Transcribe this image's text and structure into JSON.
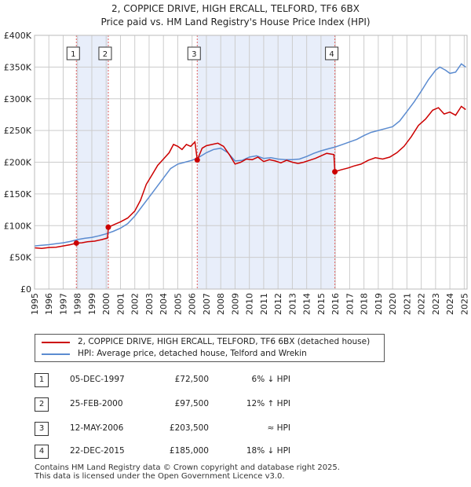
{
  "title_line1": "2, COPPICE DRIVE, HIGH ERCALL, TELFORD, TF6 6BX",
  "title_line2": "Price paid vs. HM Land Registry's House Price Index (HPI)",
  "colors": {
    "price": "#cc0000",
    "hpi": "#5b8bd0",
    "shade": "#e8eefa",
    "grid": "#cccccc",
    "vline": "#e06060"
  },
  "chart_data": {
    "type": "line",
    "xlabel": "",
    "ylabel": "",
    "xlim": [
      1995.0,
      2025.2
    ],
    "ylim": [
      0,
      400000
    ],
    "y_ticks": [
      {
        "value": 0,
        "label": "£0"
      },
      {
        "value": 50000,
        "label": "£50K"
      },
      {
        "value": 100000,
        "label": "£100K"
      },
      {
        "value": 150000,
        "label": "£150K"
      },
      {
        "value": 200000,
        "label": "£200K"
      },
      {
        "value": 250000,
        "label": "£250K"
      },
      {
        "value": 300000,
        "label": "£300K"
      },
      {
        "value": 350000,
        "label": "£350K"
      },
      {
        "value": 400000,
        "label": "£400K"
      }
    ],
    "x_ticks": [
      "1995",
      "1996",
      "1997",
      "1998",
      "1999",
      "2000",
      "2001",
      "2002",
      "2003",
      "2004",
      "2005",
      "2006",
      "2007",
      "2008",
      "2009",
      "2010",
      "2011",
      "2012",
      "2013",
      "2014",
      "2015",
      "2016",
      "2017",
      "2018",
      "2019",
      "2020",
      "2021",
      "2022",
      "2023",
      "2024",
      "2025"
    ],
    "grid": true,
    "shaded_ranges": [
      [
        1997.92,
        2000.15
      ],
      [
        2006.36,
        2015.97
      ]
    ],
    "sales": [
      {
        "label": "1",
        "x": 1997.92,
        "y": 72500
      },
      {
        "label": "2",
        "x": 2000.15,
        "y": 97500
      },
      {
        "label": "3",
        "x": 2006.36,
        "y": 203500
      },
      {
        "label": "4",
        "x": 2015.97,
        "y": 185000
      }
    ],
    "series": [
      {
        "name": "2, COPPICE DRIVE, HIGH ERCALL, TELFORD, TF6 6BX (detached house)",
        "color": "#cc0000",
        "points": [
          [
            1995.0,
            65000
          ],
          [
            1995.5,
            64000
          ],
          [
            1996.0,
            65500
          ],
          [
            1996.5,
            66000
          ],
          [
            1997.0,
            68000
          ],
          [
            1997.5,
            70000
          ],
          [
            1997.92,
            72500
          ],
          [
            1998.3,
            73000
          ],
          [
            1998.7,
            74500
          ],
          [
            1999.2,
            75500
          ],
          [
            1999.7,
            78000
          ],
          [
            2000.1,
            80500
          ],
          [
            2000.15,
            97500
          ],
          [
            2000.6,
            102000
          ],
          [
            2001.0,
            106000
          ],
          [
            2001.5,
            112000
          ],
          [
            2002.0,
            123000
          ],
          [
            2002.4,
            140000
          ],
          [
            2002.8,
            165000
          ],
          [
            2003.2,
            180000
          ],
          [
            2003.6,
            195000
          ],
          [
            2004.0,
            205000
          ],
          [
            2004.4,
            215000
          ],
          [
            2004.7,
            228000
          ],
          [
            2005.0,
            225000
          ],
          [
            2005.3,
            220000
          ],
          [
            2005.6,
            228000
          ],
          [
            2005.9,
            225000
          ],
          [
            2006.2,
            232000
          ],
          [
            2006.36,
            203500
          ],
          [
            2006.7,
            222000
          ],
          [
            2007.0,
            226000
          ],
          [
            2007.4,
            228000
          ],
          [
            2007.8,
            230000
          ],
          [
            2008.2,
            225000
          ],
          [
            2008.6,
            212000
          ],
          [
            2009.0,
            197000
          ],
          [
            2009.4,
            200000
          ],
          [
            2009.8,
            205000
          ],
          [
            2010.2,
            204000
          ],
          [
            2010.6,
            208000
          ],
          [
            2011.0,
            201000
          ],
          [
            2011.4,
            204000
          ],
          [
            2011.8,
            202000
          ],
          [
            2012.2,
            199000
          ],
          [
            2012.6,
            203000
          ],
          [
            2013.0,
            200000
          ],
          [
            2013.4,
            198000
          ],
          [
            2013.8,
            200000
          ],
          [
            2014.2,
            203000
          ],
          [
            2014.6,
            206000
          ],
          [
            2015.0,
            210000
          ],
          [
            2015.4,
            214000
          ],
          [
            2015.9,
            212000
          ],
          [
            2015.97,
            185000
          ],
          [
            2016.4,
            188000
          ],
          [
            2016.9,
            191000
          ],
          [
            2017.3,
            194000
          ],
          [
            2017.8,
            197000
          ],
          [
            2018.3,
            203000
          ],
          [
            2018.8,
            207000
          ],
          [
            2019.3,
            205000
          ],
          [
            2019.8,
            208000
          ],
          [
            2020.3,
            215000
          ],
          [
            2020.8,
            225000
          ],
          [
            2021.3,
            240000
          ],
          [
            2021.8,
            258000
          ],
          [
            2022.3,
            268000
          ],
          [
            2022.8,
            282000
          ],
          [
            2023.2,
            286000
          ],
          [
            2023.6,
            276000
          ],
          [
            2024.0,
            279000
          ],
          [
            2024.4,
            274000
          ],
          [
            2024.8,
            288000
          ],
          [
            2025.1,
            283000
          ]
        ]
      },
      {
        "name": "HPI: Average price, detached house, Telford and Wrekin",
        "color": "#5b8bd0",
        "points": [
          [
            1995.0,
            68000
          ],
          [
            1995.5,
            69000
          ],
          [
            1996.0,
            70000
          ],
          [
            1996.5,
            71500
          ],
          [
            1997.0,
            73000
          ],
          [
            1997.5,
            75000
          ],
          [
            1998.0,
            78000
          ],
          [
            1998.5,
            80000
          ],
          [
            1999.0,
            81500
          ],
          [
            1999.5,
            84000
          ],
          [
            2000.0,
            87000
          ],
          [
            2000.5,
            91000
          ],
          [
            2001.0,
            96000
          ],
          [
            2001.5,
            103000
          ],
          [
            2002.0,
            115000
          ],
          [
            2002.5,
            130000
          ],
          [
            2003.0,
            145000
          ],
          [
            2003.5,
            160000
          ],
          [
            2004.0,
            175000
          ],
          [
            2004.5,
            190000
          ],
          [
            2005.0,
            197000
          ],
          [
            2005.5,
            200000
          ],
          [
            2006.0,
            203000
          ],
          [
            2006.5,
            208000
          ],
          [
            2007.0,
            215000
          ],
          [
            2007.5,
            220000
          ],
          [
            2008.0,
            222000
          ],
          [
            2008.5,
            215000
          ],
          [
            2009.0,
            202000
          ],
          [
            2009.5,
            203000
          ],
          [
            2010.0,
            208000
          ],
          [
            2010.5,
            210000
          ],
          [
            2011.0,
            206000
          ],
          [
            2011.5,
            207000
          ],
          [
            2012.0,
            205000
          ],
          [
            2012.5,
            204000
          ],
          [
            2013.0,
            204000
          ],
          [
            2013.5,
            205000
          ],
          [
            2014.0,
            209000
          ],
          [
            2014.5,
            214000
          ],
          [
            2015.0,
            218000
          ],
          [
            2015.5,
            221000
          ],
          [
            2016.0,
            224000
          ],
          [
            2016.5,
            228000
          ],
          [
            2017.0,
            232000
          ],
          [
            2017.5,
            236000
          ],
          [
            2018.0,
            242000
          ],
          [
            2018.5,
            247000
          ],
          [
            2019.0,
            250000
          ],
          [
            2019.5,
            253000
          ],
          [
            2020.0,
            256000
          ],
          [
            2020.5,
            265000
          ],
          [
            2021.0,
            280000
          ],
          [
            2021.5,
            295000
          ],
          [
            2022.0,
            312000
          ],
          [
            2022.5,
            330000
          ],
          [
            2023.0,
            345000
          ],
          [
            2023.3,
            350000
          ],
          [
            2023.7,
            345000
          ],
          [
            2024.0,
            340000
          ],
          [
            2024.4,
            342000
          ],
          [
            2024.8,
            355000
          ],
          [
            2025.1,
            350000
          ]
        ]
      }
    ]
  },
  "legend": {
    "price_label": "2, COPPICE DRIVE, HIGH ERCALL, TELFORD, TF6 6BX (detached house)",
    "hpi_label": "HPI: Average price, detached house, Telford and Wrekin"
  },
  "transactions": [
    {
      "num": "1",
      "date": "05-DEC-1997",
      "price": "£72,500",
      "hpi": "6% ↓ HPI"
    },
    {
      "num": "2",
      "date": "25-FEB-2000",
      "price": "£97,500",
      "hpi": "12% ↑ HPI"
    },
    {
      "num": "3",
      "date": "12-MAY-2006",
      "price": "£203,500",
      "hpi": "≈ HPI"
    },
    {
      "num": "4",
      "date": "22-DEC-2015",
      "price": "£185,000",
      "hpi": "18% ↓ HPI"
    }
  ],
  "footer": {
    "line1": "Contains HM Land Registry data © Crown copyright and database right 2025.",
    "line2": "This data is licensed under the Open Government Licence v3.0."
  }
}
